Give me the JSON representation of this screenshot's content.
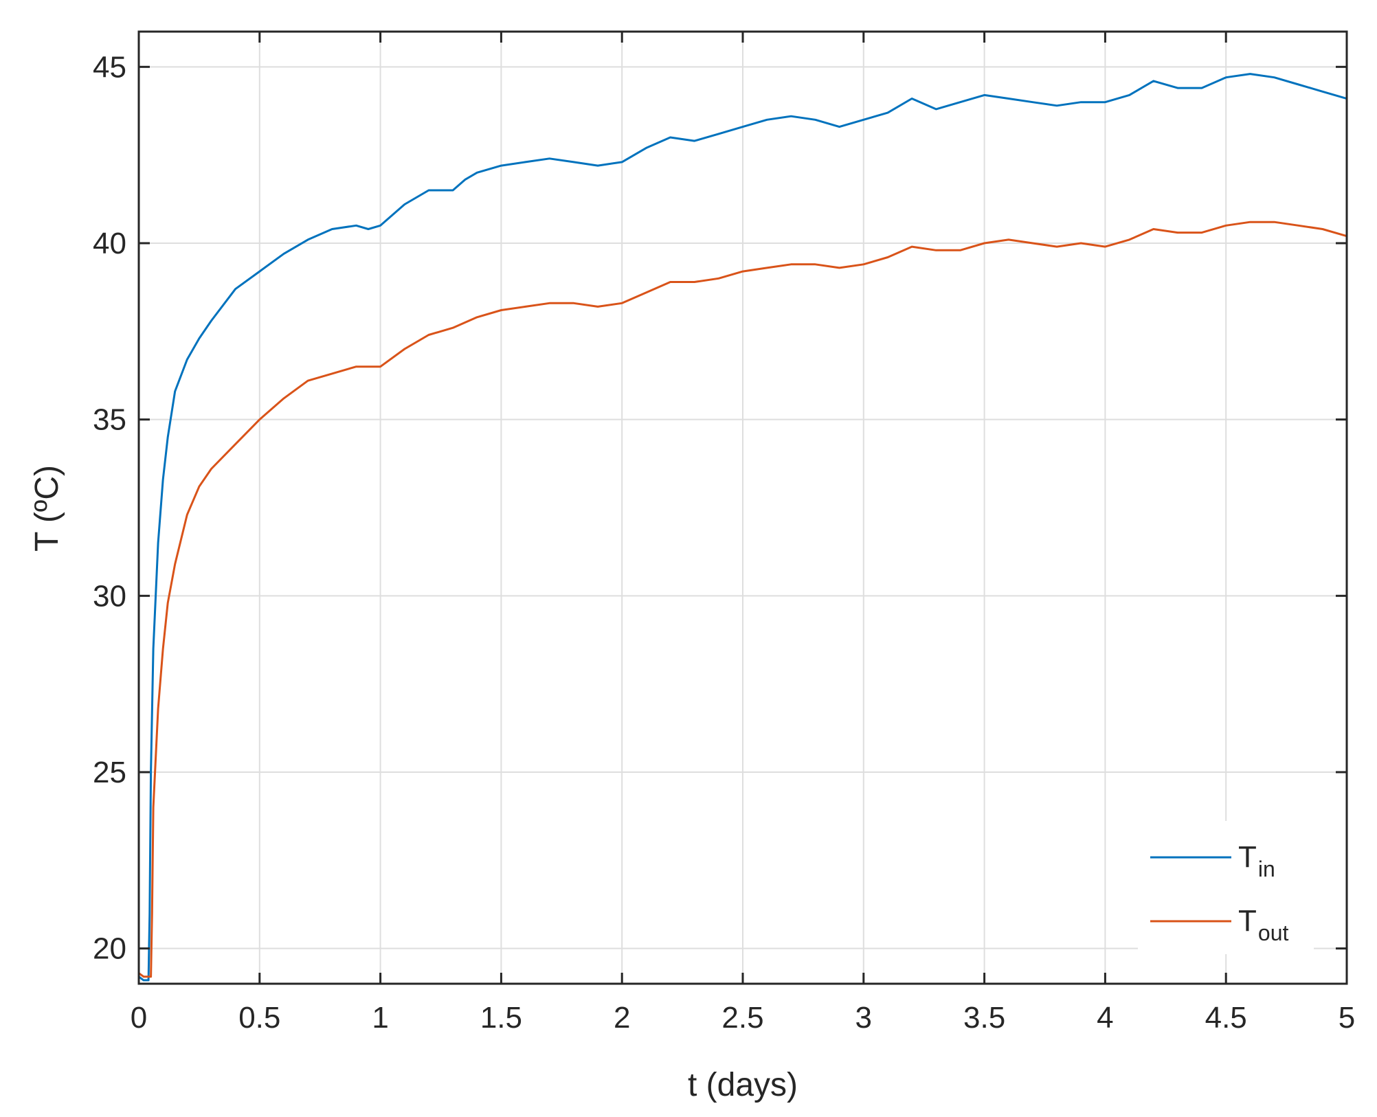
{
  "chart_data": {
    "type": "line",
    "xlabel": "t (days)",
    "ylabel": "T (ºC)",
    "xlim": [
      0,
      5
    ],
    "ylim": [
      19,
      46
    ],
    "xticks": [
      0,
      0.5,
      1,
      1.5,
      2,
      2.5,
      3,
      3.5,
      4,
      4.5,
      5
    ],
    "xtick_labels": [
      "0",
      "0.5",
      "1",
      "1.5",
      "2",
      "2.5",
      "3",
      "3.5",
      "4",
      "4.5",
      "5"
    ],
    "yticks": [
      20,
      25,
      30,
      35,
      40,
      45
    ],
    "ytick_labels": [
      "20",
      "25",
      "30",
      "35",
      "40",
      "45"
    ],
    "grid": true,
    "legend_position": "bottom-right",
    "series": [
      {
        "name": "T_in",
        "legend_main": "T",
        "legend_sub": "in",
        "color": "#0072BD",
        "x": [
          0,
          0.02,
          0.04,
          0.045,
          0.05,
          0.06,
          0.08,
          0.1,
          0.12,
          0.15,
          0.2,
          0.25,
          0.3,
          0.4,
          0.5,
          0.6,
          0.7,
          0.8,
          0.9,
          0.95,
          1,
          1.1,
          1.2,
          1.3,
          1.35,
          1.4,
          1.5,
          1.6,
          1.7,
          1.8,
          1.9,
          2,
          2.1,
          2.2,
          2.3,
          2.4,
          2.5,
          2.6,
          2.7,
          2.8,
          2.9,
          3,
          3.1,
          3.2,
          3.3,
          3.4,
          3.5,
          3.6,
          3.7,
          3.8,
          3.9,
          4,
          4.1,
          4.2,
          4.3,
          4.4,
          4.5,
          4.6,
          4.7,
          4.8,
          4.9,
          5
        ],
        "y": [
          19.2,
          19.1,
          19.1,
          21.0,
          25.0,
          28.5,
          31.5,
          33.3,
          34.5,
          35.8,
          36.7,
          37.3,
          37.8,
          38.7,
          39.2,
          39.7,
          40.1,
          40.4,
          40.5,
          40.4,
          40.5,
          41.1,
          41.5,
          41.5,
          41.8,
          42.0,
          42.2,
          42.3,
          42.4,
          42.3,
          42.2,
          42.3,
          42.7,
          43.0,
          42.9,
          43.1,
          43.3,
          43.5,
          43.6,
          43.5,
          43.3,
          43.5,
          43.7,
          44.1,
          43.8,
          44.0,
          44.2,
          44.1,
          44.0,
          43.9,
          44.0,
          44.0,
          44.2,
          44.6,
          44.4,
          44.4,
          44.7,
          44.8,
          44.7,
          44.5,
          44.3,
          44.1
        ]
      },
      {
        "name": "T_out",
        "legend_main": "T",
        "legend_sub": "out",
        "color": "#D95319",
        "x": [
          0,
          0.02,
          0.05,
          0.055,
          0.06,
          0.08,
          0.1,
          0.12,
          0.15,
          0.2,
          0.25,
          0.3,
          0.4,
          0.5,
          0.6,
          0.7,
          0.8,
          0.9,
          1,
          1.1,
          1.2,
          1.3,
          1.4,
          1.5,
          1.6,
          1.7,
          1.8,
          1.9,
          2,
          2.1,
          2.2,
          2.3,
          2.4,
          2.5,
          2.6,
          2.7,
          2.8,
          2.9,
          3,
          3.1,
          3.2,
          3.3,
          3.4,
          3.5,
          3.6,
          3.7,
          3.8,
          3.9,
          4,
          4.1,
          4.2,
          4.3,
          4.4,
          4.5,
          4.6,
          4.7,
          4.8,
          4.9,
          5
        ],
        "y": [
          19.3,
          19.2,
          19.2,
          21.0,
          24.0,
          26.8,
          28.5,
          29.8,
          30.9,
          32.3,
          33.1,
          33.6,
          34.3,
          35.0,
          35.6,
          36.1,
          36.3,
          36.5,
          36.5,
          37.0,
          37.4,
          37.6,
          37.9,
          38.1,
          38.2,
          38.3,
          38.3,
          38.2,
          38.3,
          38.6,
          38.9,
          38.9,
          39.0,
          39.2,
          39.3,
          39.4,
          39.4,
          39.3,
          39.4,
          39.6,
          39.9,
          39.8,
          39.8,
          40.0,
          40.1,
          40.0,
          39.9,
          40.0,
          39.9,
          40.1,
          40.4,
          40.3,
          40.3,
          40.5,
          40.6,
          40.6,
          40.5,
          40.4,
          40.2
        ]
      }
    ]
  }
}
